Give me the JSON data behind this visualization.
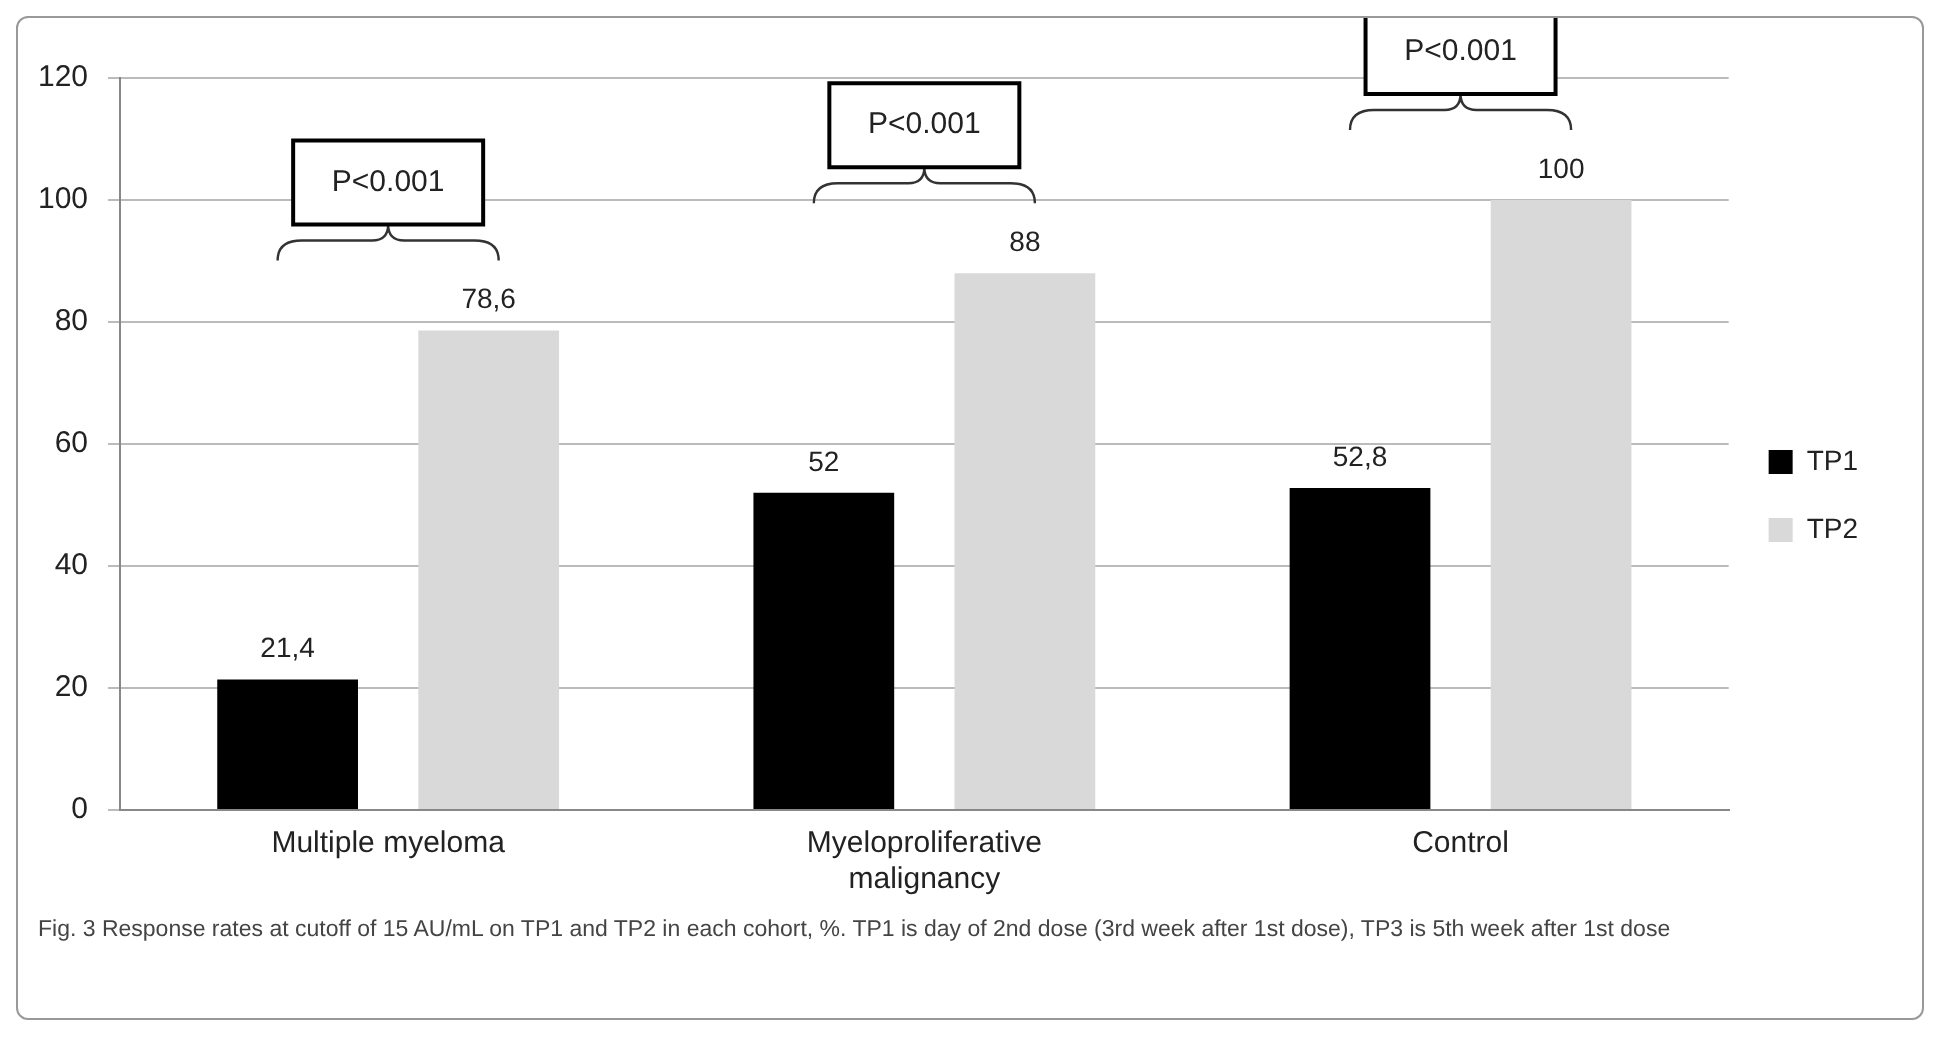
{
  "chart_data": {
    "type": "bar",
    "categories": [
      "Multiple myeloma",
      "Myeloproliferative malignancy",
      "Control"
    ],
    "series": [
      {
        "name": "TP1",
        "color": "#000000",
        "values": [
          21.4,
          52,
          52.8
        ],
        "value_labels": [
          "21,4",
          "52",
          "52,8"
        ]
      },
      {
        "name": "TP2",
        "color": "#d9d9d9",
        "values": [
          78.6,
          88,
          100
        ],
        "value_labels": [
          "78,6",
          "88",
          "100"
        ]
      }
    ],
    "ylim": [
      0,
      120
    ],
    "yticks": [
      0,
      20,
      40,
      60,
      80,
      100,
      120
    ],
    "grid": "y",
    "legend": "right",
    "annotations": [
      "P<0.001",
      "P<0.001",
      "P<0.001",
      "Fig. 3 Response rates at cutoff of 15 AU/mL on TP1 and TP2 in each cohort, %. TP1 is day of 2nd dose (3rd week after 1st dose), TP3 is 5th week after 1st dose"
    ]
  }
}
